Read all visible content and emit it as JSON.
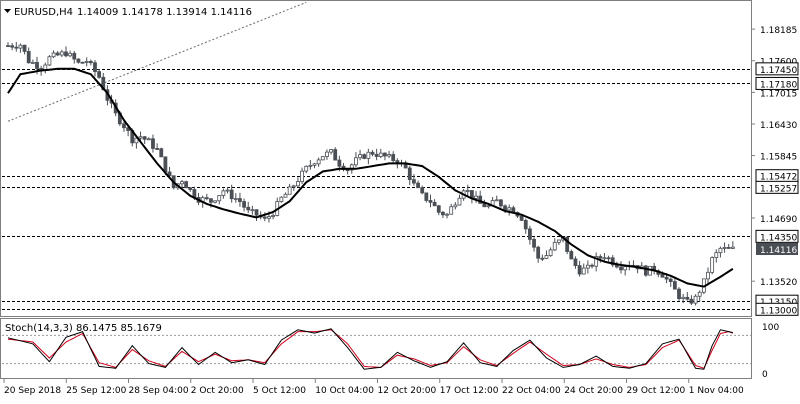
{
  "header": {
    "symbol": "EURUSD,H4",
    "ohlc": "1.14009 1.14178 1.13914 1.14116"
  },
  "colors": {
    "background": "#ffffff",
    "candle": "#4a4f55",
    "ma": "#000000",
    "level_line": "#000000",
    "trendline": "#6b6b6b",
    "axis": "#7f7f7f",
    "current_price_tag": "#4a4f55",
    "stoch_main": "#000000",
    "stoch_signal": "#d0021b"
  },
  "chart_data": [
    {
      "type": "candlestick",
      "title": "EURUSD,H4",
      "ylim": [
        1.1295,
        1.1865
      ],
      "x_ticks": [
        "20 Sep 2018",
        "25 Sep 12:00",
        "28 Sep 04:00",
        "2 Oct 20:00",
        "5 Oct 12:00",
        "10 Oct 04:00",
        "12 Oct 20:00",
        "17 Oct 12:00",
        "22 Oct 04:00",
        "24 Oct 20:00",
        "29 Oct 12:00",
        "1 Nov 04:00"
      ],
      "y_ticks": [
        1.18185,
        1.176,
        1.17015,
        1.1643,
        1.15845,
        1.1469,
        1.1352
      ],
      "y_tick_labels": [
        "1.18185",
        "1.17600",
        "1.17015",
        "1.16430",
        "1.15845",
        "1.14690",
        "1.13520"
      ],
      "levels": [
        {
          "value": 1.1745,
          "label": "1.17450"
        },
        {
          "value": 1.1718,
          "label": "1.17180"
        },
        {
          "value": 1.15472,
          "label": "1.15472"
        },
        {
          "value": 1.15257,
          "label": "1.15257"
        },
        {
          "value": 1.1435,
          "label": "1.14350"
        },
        {
          "value": 1.1315,
          "label": "1.13150"
        },
        {
          "value": 1.13,
          "label": "1.13000"
        }
      ],
      "current_price": {
        "value": 1.14116,
        "label": "1.14116"
      },
      "trendline": {
        "from": [
          0,
          1.1648
        ],
        "to": [
          72,
          1.1868
        ]
      },
      "ma_anchors": [
        [
          0,
          1.17
        ],
        [
          3,
          1.1735
        ],
        [
          8,
          1.1742
        ],
        [
          12,
          1.1745
        ],
        [
          16,
          1.1745
        ],
        [
          20,
          1.1735
        ],
        [
          24,
          1.17
        ],
        [
          28,
          1.165
        ],
        [
          32,
          1.161
        ],
        [
          36,
          1.157
        ],
        [
          40,
          1.1535
        ],
        [
          44,
          1.151
        ],
        [
          48,
          1.1495
        ],
        [
          52,
          1.1485
        ],
        [
          56,
          1.1477
        ],
        [
          60,
          1.147
        ],
        [
          64,
          1.148
        ],
        [
          68,
          1.15
        ],
        [
          72,
          1.1535
        ],
        [
          76,
          1.1555
        ],
        [
          80,
          1.156
        ],
        [
          84,
          1.156
        ],
        [
          88,
          1.1565
        ],
        [
          92,
          1.157
        ],
        [
          96,
          1.157
        ],
        [
          100,
          1.1565
        ],
        [
          104,
          1.1545
        ],
        [
          108,
          1.152
        ],
        [
          112,
          1.1505
        ],
        [
          116,
          1.1495
        ],
        [
          120,
          1.1482
        ],
        [
          124,
          1.1475
        ],
        [
          128,
          1.1462
        ],
        [
          132,
          1.1445
        ],
        [
          136,
          1.142
        ],
        [
          140,
          1.14
        ],
        [
          144,
          1.1388
        ],
        [
          148,
          1.1382
        ],
        [
          152,
          1.1378
        ],
        [
          156,
          1.1372
        ],
        [
          160,
          1.1362
        ],
        [
          164,
          1.1348
        ],
        [
          168,
          1.1342
        ],
        [
          172,
          1.136
        ],
        [
          175,
          1.1375
        ]
      ],
      "close_anchors": [
        [
          0,
          1.1788
        ],
        [
          3,
          1.179
        ],
        [
          5,
          1.176
        ],
        [
          8,
          1.1748
        ],
        [
          10,
          1.1765
        ],
        [
          14,
          1.1775
        ],
        [
          17,
          1.1755
        ],
        [
          19,
          1.176
        ],
        [
          22,
          1.173
        ],
        [
          24,
          1.169
        ],
        [
          26,
          1.166
        ],
        [
          28,
          1.164
        ],
        [
          30,
          1.1615
        ],
        [
          32,
          1.162
        ],
        [
          34,
          1.161
        ],
        [
          36,
          1.1595
        ],
        [
          38,
          1.156
        ],
        [
          40,
          1.1525
        ],
        [
          42,
          1.154
        ],
        [
          44,
          1.152
        ],
        [
          46,
          1.1505
        ],
        [
          49,
          1.15
        ],
        [
          52,
          1.152
        ],
        [
          54,
          1.151
        ],
        [
          56,
          1.15
        ],
        [
          58,
          1.148
        ],
        [
          60,
          1.1475
        ],
        [
          62,
          1.1465
        ],
        [
          64,
          1.148
        ],
        [
          66,
          1.1505
        ],
        [
          68,
          1.152
        ],
        [
          70,
          1.154
        ],
        [
          72,
          1.156
        ],
        [
          74,
          1.1575
        ],
        [
          76,
          1.1585
        ],
        [
          78,
          1.159
        ],
        [
          80,
          1.157
        ],
        [
          82,
          1.156
        ],
        [
          84,
          1.1575
        ],
        [
          86,
          1.1585
        ],
        [
          88,
          1.159
        ],
        [
          90,
          1.1585
        ],
        [
          92,
          1.158
        ],
        [
          94,
          1.1575
        ],
        [
          96,
          1.156
        ],
        [
          98,
          1.153
        ],
        [
          100,
          1.151
        ],
        [
          102,
          1.15
        ],
        [
          104,
          1.148
        ],
        [
          106,
          1.1475
        ],
        [
          108,
          1.15
        ],
        [
          110,
          1.1525
        ],
        [
          112,
          1.151
        ],
        [
          114,
          1.1495
        ],
        [
          116,
          1.149
        ],
        [
          118,
          1.15
        ],
        [
          120,
          1.149
        ],
        [
          122,
          1.1485
        ],
        [
          124,
          1.147
        ],
        [
          126,
          1.143
        ],
        [
          128,
          1.1395
        ],
        [
          130,
          1.14
        ],
        [
          132,
          1.142
        ],
        [
          134,
          1.143
        ],
        [
          136,
          1.139
        ],
        [
          138,
          1.1372
        ],
        [
          140,
          1.1375
        ],
        [
          142,
          1.1392
        ],
        [
          144,
          1.14
        ],
        [
          146,
          1.1388
        ],
        [
          148,
          1.138
        ],
        [
          150,
          1.1385
        ],
        [
          152,
          1.138
        ],
        [
          154,
          1.137
        ],
        [
          156,
          1.1375
        ],
        [
          158,
          1.1365
        ],
        [
          160,
          1.1345
        ],
        [
          162,
          1.1325
        ],
        [
          164,
          1.1312
        ],
        [
          166,
          1.132
        ],
        [
          168,
          1.135
        ],
        [
          170,
          1.1392
        ],
        [
          172,
          1.1412
        ],
        [
          174,
          1.141
        ],
        [
          175,
          1.1411
        ]
      ]
    },
    {
      "type": "line",
      "title": "Stoch(14,3,3) 86.1475 85.1679",
      "ylim": [
        0,
        100
      ],
      "y_ticks": [
        100,
        80,
        20,
        0
      ],
      "y_tick_labels": [
        "100",
        "",
        "",
        "0"
      ],
      "main_anchors": [
        [
          0,
          75
        ],
        [
          6,
          62
        ],
        [
          10,
          24
        ],
        [
          14,
          76
        ],
        [
          18,
          88
        ],
        [
          22,
          14
        ],
        [
          26,
          10
        ],
        [
          30,
          58
        ],
        [
          34,
          20
        ],
        [
          38,
          12
        ],
        [
          42,
          54
        ],
        [
          46,
          18
        ],
        [
          50,
          44
        ],
        [
          54,
          22
        ],
        [
          58,
          28
        ],
        [
          62,
          18
        ],
        [
          66,
          70
        ],
        [
          70,
          92
        ],
        [
          74,
          85
        ],
        [
          78,
          94
        ],
        [
          82,
          54
        ],
        [
          86,
          8
        ],
        [
          90,
          12
        ],
        [
          94,
          44
        ],
        [
          98,
          26
        ],
        [
          102,
          12
        ],
        [
          106,
          24
        ],
        [
          110,
          64
        ],
        [
          114,
          22
        ],
        [
          118,
          14
        ],
        [
          122,
          48
        ],
        [
          126,
          70
        ],
        [
          130,
          32
        ],
        [
          134,
          12
        ],
        [
          138,
          18
        ],
        [
          142,
          36
        ],
        [
          146,
          14
        ],
        [
          150,
          10
        ],
        [
          154,
          20
        ],
        [
          158,
          62
        ],
        [
          162,
          72
        ],
        [
          166,
          10
        ],
        [
          168,
          8
        ],
        [
          170,
          58
        ],
        [
          172,
          92
        ],
        [
          174,
          88
        ],
        [
          175,
          86
        ]
      ],
      "signal_anchors": [
        [
          0,
          72
        ],
        [
          6,
          66
        ],
        [
          10,
          32
        ],
        [
          14,
          66
        ],
        [
          18,
          84
        ],
        [
          22,
          22
        ],
        [
          26,
          12
        ],
        [
          30,
          50
        ],
        [
          34,
          26
        ],
        [
          38,
          14
        ],
        [
          42,
          46
        ],
        [
          46,
          24
        ],
        [
          50,
          40
        ],
        [
          54,
          26
        ],
        [
          58,
          28
        ],
        [
          62,
          22
        ],
        [
          66,
          62
        ],
        [
          70,
          88
        ],
        [
          74,
          88
        ],
        [
          78,
          92
        ],
        [
          82,
          62
        ],
        [
          86,
          14
        ],
        [
          90,
          12
        ],
        [
          94,
          38
        ],
        [
          98,
          30
        ],
        [
          102,
          16
        ],
        [
          106,
          22
        ],
        [
          110,
          56
        ],
        [
          114,
          28
        ],
        [
          118,
          16
        ],
        [
          122,
          42
        ],
        [
          126,
          66
        ],
        [
          130,
          40
        ],
        [
          134,
          16
        ],
        [
          138,
          18
        ],
        [
          142,
          30
        ],
        [
          146,
          18
        ],
        [
          150,
          12
        ],
        [
          154,
          18
        ],
        [
          158,
          54
        ],
        [
          162,
          70
        ],
        [
          166,
          16
        ],
        [
          168,
          10
        ],
        [
          170,
          48
        ],
        [
          172,
          84
        ],
        [
          174,
          88
        ],
        [
          175,
          85
        ]
      ]
    }
  ]
}
